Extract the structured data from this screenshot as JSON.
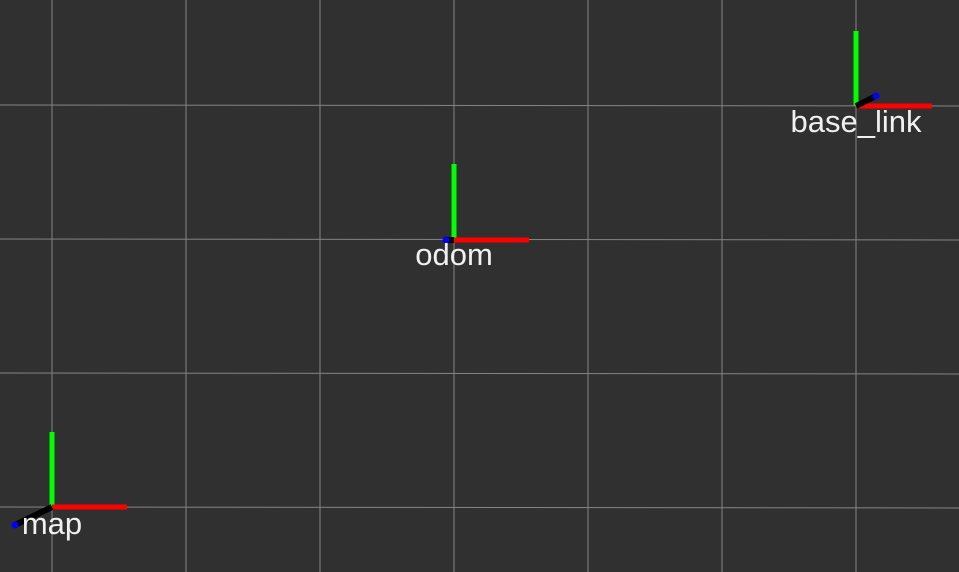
{
  "scene": {
    "background_color": "#303030",
    "grid_color": "#a0a0a0",
    "axis_colors": {
      "x": "#ff0000",
      "y": "#00ff00",
      "z": "#0000ff",
      "link": "#000000"
    },
    "label_color": "#f0f0f0"
  },
  "frames": [
    {
      "name": "map"
    },
    {
      "name": "odom"
    },
    {
      "name": "base_link"
    }
  ]
}
